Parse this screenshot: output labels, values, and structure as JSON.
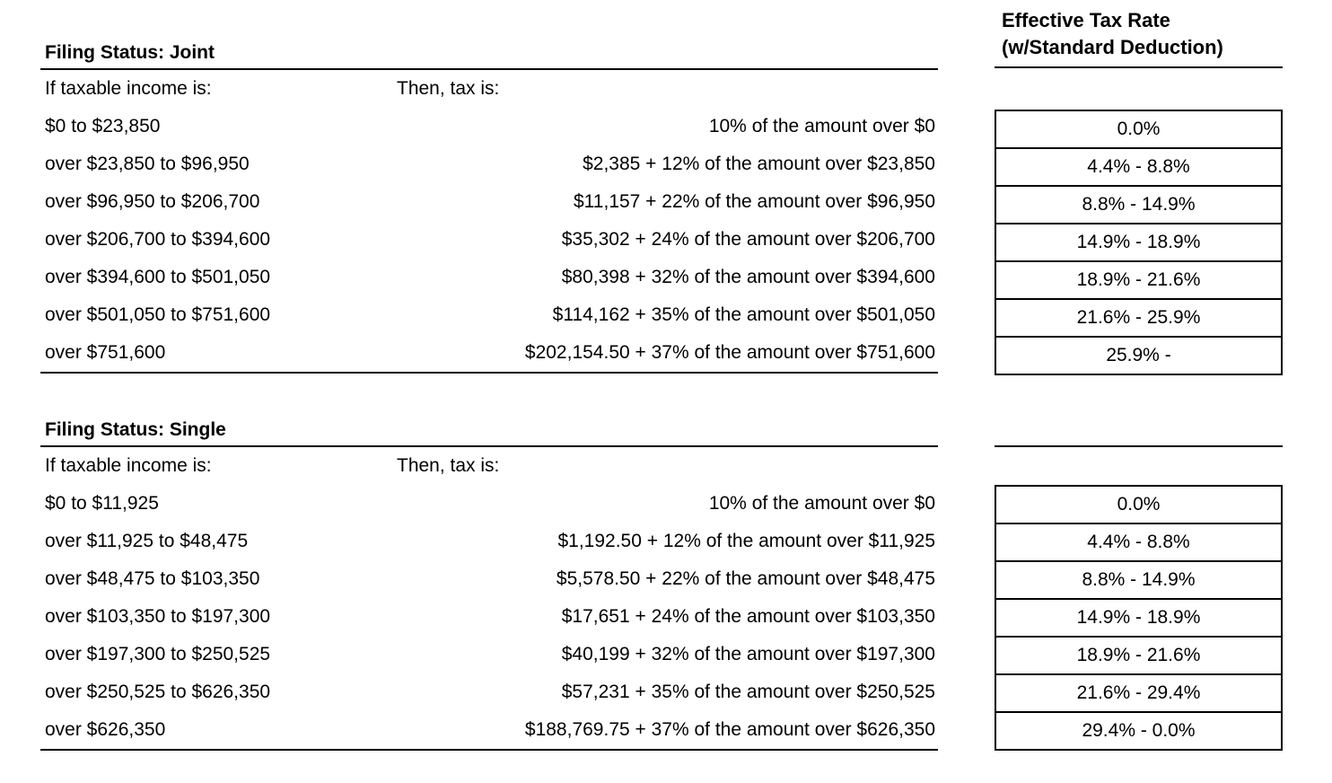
{
  "rate_column_header": {
    "line1": "Effective Tax Rate",
    "line2": "(w/Standard Deduction)"
  },
  "tables": [
    {
      "title": "Filing Status: Joint",
      "income_header": "If taxable income is:",
      "tax_header": "Then, tax is:",
      "rows": [
        {
          "income": "$0 to $23,850",
          "tax": "10% of the amount over $0",
          "rate": "0.0%"
        },
        {
          "income": "over $23,850 to $96,950",
          "tax": "$2,385 + 12% of the amount over $23,850",
          "rate": "4.4% - 8.8%"
        },
        {
          "income": "over $96,950 to $206,700",
          "tax": "$11,157 + 22% of the amount over $96,950",
          "rate": "8.8% - 14.9%"
        },
        {
          "income": "over $206,700 to $394,600",
          "tax": "$35,302 + 24% of the amount over $206,700",
          "rate": "14.9% - 18.9%"
        },
        {
          "income": "over $394,600 to $501,050",
          "tax": "$80,398 + 32% of the amount over $394,600",
          "rate": "18.9% - 21.6%"
        },
        {
          "income": "over $501,050 to $751,600",
          "tax": "$114,162 + 35% of the amount over $501,050",
          "rate": "21.6% - 25.9%"
        },
        {
          "income": "over $751,600",
          "tax": "$202,154.50 + 37% of the amount over $751,600",
          "rate": "25.9% -"
        }
      ]
    },
    {
      "title": "Filing Status: Single",
      "income_header": "If taxable income is:",
      "tax_header": "Then, tax is:",
      "rows": [
        {
          "income": "$0 to $11,925",
          "tax": "10% of the amount over $0",
          "rate": "0.0%"
        },
        {
          "income": "over $11,925 to $48,475",
          "tax": "$1,192.50 + 12% of the amount over $11,925",
          "rate": "4.4% - 8.8%"
        },
        {
          "income": "over $48,475 to $103,350",
          "tax": "$5,578.50 + 22% of the amount over $48,475",
          "rate": "8.8% - 14.9%"
        },
        {
          "income": "over $103,350 to $197,300",
          "tax": "$17,651 + 24% of the amount over $103,350",
          "rate": "14.9% - 18.9%"
        },
        {
          "income": "over $197,300 to $250,525",
          "tax": "$40,199 + 32% of the amount over $197,300",
          "rate": "18.9% - 21.6%"
        },
        {
          "income": "over $250,525 to $626,350",
          "tax": "$57,231 + 35% of the amount over $250,525",
          "rate": "21.6% - 29.4%"
        },
        {
          "income": "over $626,350",
          "tax": "$188,769.75 + 37% of the amount over $626,350",
          "rate": "29.4% - 0.0%"
        }
      ]
    }
  ]
}
